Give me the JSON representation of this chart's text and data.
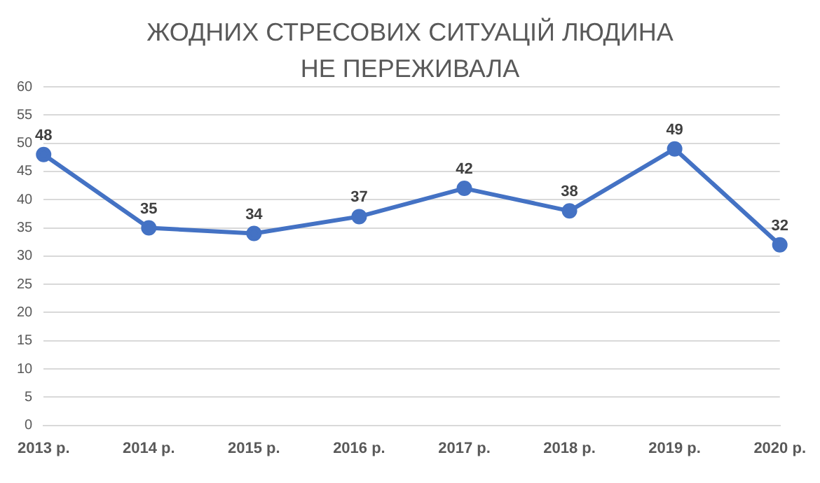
{
  "chart_data": {
    "type": "line",
    "title": "ЖОДНИХ СТРЕСОВИХ СИТУАЦІЙ ЛЮДИНА НЕ ПЕРЕЖИВАЛА",
    "categories": [
      "2013 р.",
      "2014 р.",
      "2015 р.",
      "2016 р.",
      "2017 р.",
      "2018 р.",
      "2019 р.",
      "2020 р."
    ],
    "series": [
      {
        "color": "#4472c4",
        "values": [
          48,
          35,
          34,
          37,
          42,
          38,
          49,
          32
        ]
      }
    ],
    "ylim": [
      0,
      60
    ],
    "yticks": [
      0,
      5,
      10,
      15,
      20,
      25,
      30,
      35,
      40,
      45,
      50,
      55,
      60
    ],
    "grid": "y",
    "legend": false,
    "marker": "circle",
    "line_style": "solid",
    "data_labels": true
  }
}
